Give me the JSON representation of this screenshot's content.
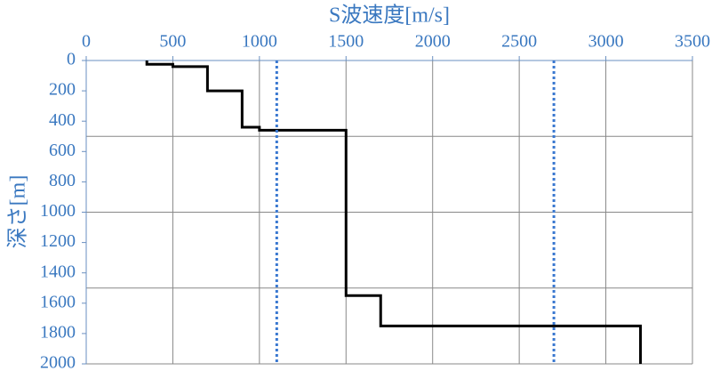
{
  "chart_data": {
    "type": "line",
    "xlabel": "S波速度[m/s]",
    "ylabel": "深さ[m]",
    "xlim": [
      0,
      3500
    ],
    "xticks": [
      0,
      500,
      1000,
      1500,
      2000,
      2500,
      3000,
      3500
    ],
    "ylim": [
      0,
      2000
    ],
    "yticks": [
      0,
      200,
      400,
      600,
      800,
      1000,
      1200,
      1400,
      1600,
      1800,
      2000
    ],
    "y_inverted": true,
    "x_axis_position": "top",
    "xgrid": true,
    "ygrid": [
      500,
      1000,
      1500,
      2000
    ],
    "series": [
      {
        "color": "#000000",
        "style": "solid",
        "x": [
          350,
          350,
          500,
          500,
          700,
          700,
          900,
          900,
          1000,
          1000,
          1500,
          1500,
          1700,
          1700,
          3200,
          3200
        ],
        "values": [
          0,
          25,
          25,
          40,
          40,
          200,
          200,
          440,
          440,
          460,
          460,
          1550,
          1550,
          1750,
          1750,
          2000
        ]
      },
      {
        "color": "#3a78d0",
        "style": "dotted",
        "x": [
          1100,
          1100
        ],
        "values": [
          0,
          2000
        ]
      },
      {
        "color": "#3a78d0",
        "style": "dotted",
        "x": [
          2700,
          2700
        ],
        "values": [
          0,
          2000
        ]
      }
    ]
  }
}
